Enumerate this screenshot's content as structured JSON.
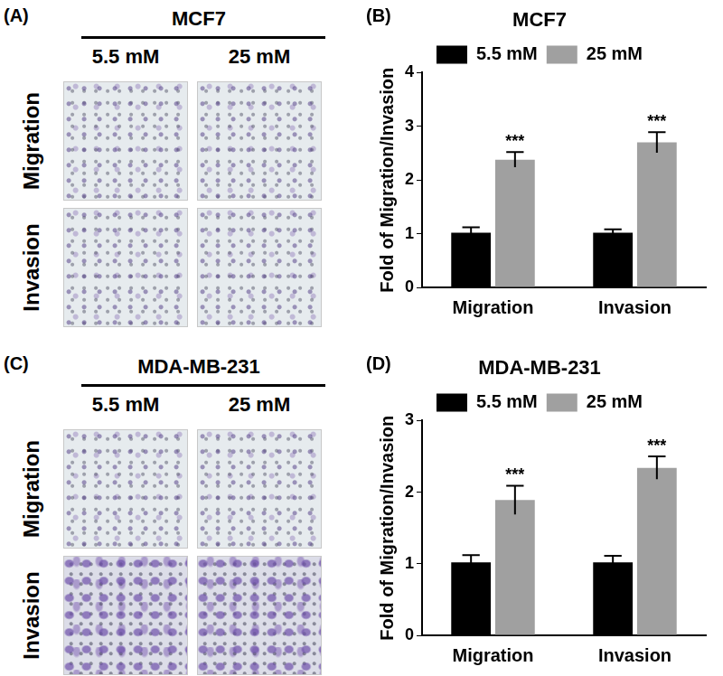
{
  "image_panels": [
    {
      "panel_label": "(A)",
      "title": "MCF7",
      "columns": [
        "5.5 mM",
        "25 mM"
      ],
      "rows": [
        "Migration",
        "Invasion"
      ]
    },
    {
      "panel_label": "(C)",
      "title": "MDA-MB-231",
      "columns": [
        "5.5 mM",
        "25 mM"
      ],
      "rows": [
        "Migration",
        "Invasion"
      ]
    }
  ],
  "chart_data": [
    {
      "type": "bar",
      "panel_label": "(B)",
      "title": "MCF7",
      "y_label": "Fold of Migration/Invasion",
      "categories": [
        "Migration",
        "Invasion"
      ],
      "series": [
        {
          "name": "5.5 mM",
          "color": "#000000",
          "values": [
            1.02,
            1.02
          ],
          "errors": [
            0.1,
            0.06
          ]
        },
        {
          "name": "25 mM",
          "color": "#a0a0a0",
          "values": [
            2.38,
            2.7
          ],
          "errors": [
            0.14,
            0.19
          ],
          "annotations": [
            "***",
            "***"
          ]
        }
      ],
      "ylim": [
        0,
        4
      ],
      "yticks": [
        0,
        1,
        2,
        3,
        4
      ],
      "grid": false,
      "legend": "top"
    },
    {
      "type": "bar",
      "panel_label": "(D)",
      "title": "MDA-MB-231",
      "y_label": "Fold of Migration/Invasion",
      "categories": [
        "Migration",
        "Invasion"
      ],
      "series": [
        {
          "name": "5.5 mM",
          "color": "#000000",
          "values": [
            1.02,
            1.02
          ],
          "errors": [
            0.1,
            0.09
          ]
        },
        {
          "name": "25 mM",
          "color": "#a0a0a0",
          "values": [
            1.89,
            2.34
          ],
          "errors": [
            0.2,
            0.16
          ],
          "annotations": [
            "***",
            "***"
          ]
        }
      ],
      "ylim": [
        0,
        3
      ],
      "yticks": [
        0,
        1,
        2,
        3
      ],
      "grid": false,
      "legend": "top"
    }
  ]
}
